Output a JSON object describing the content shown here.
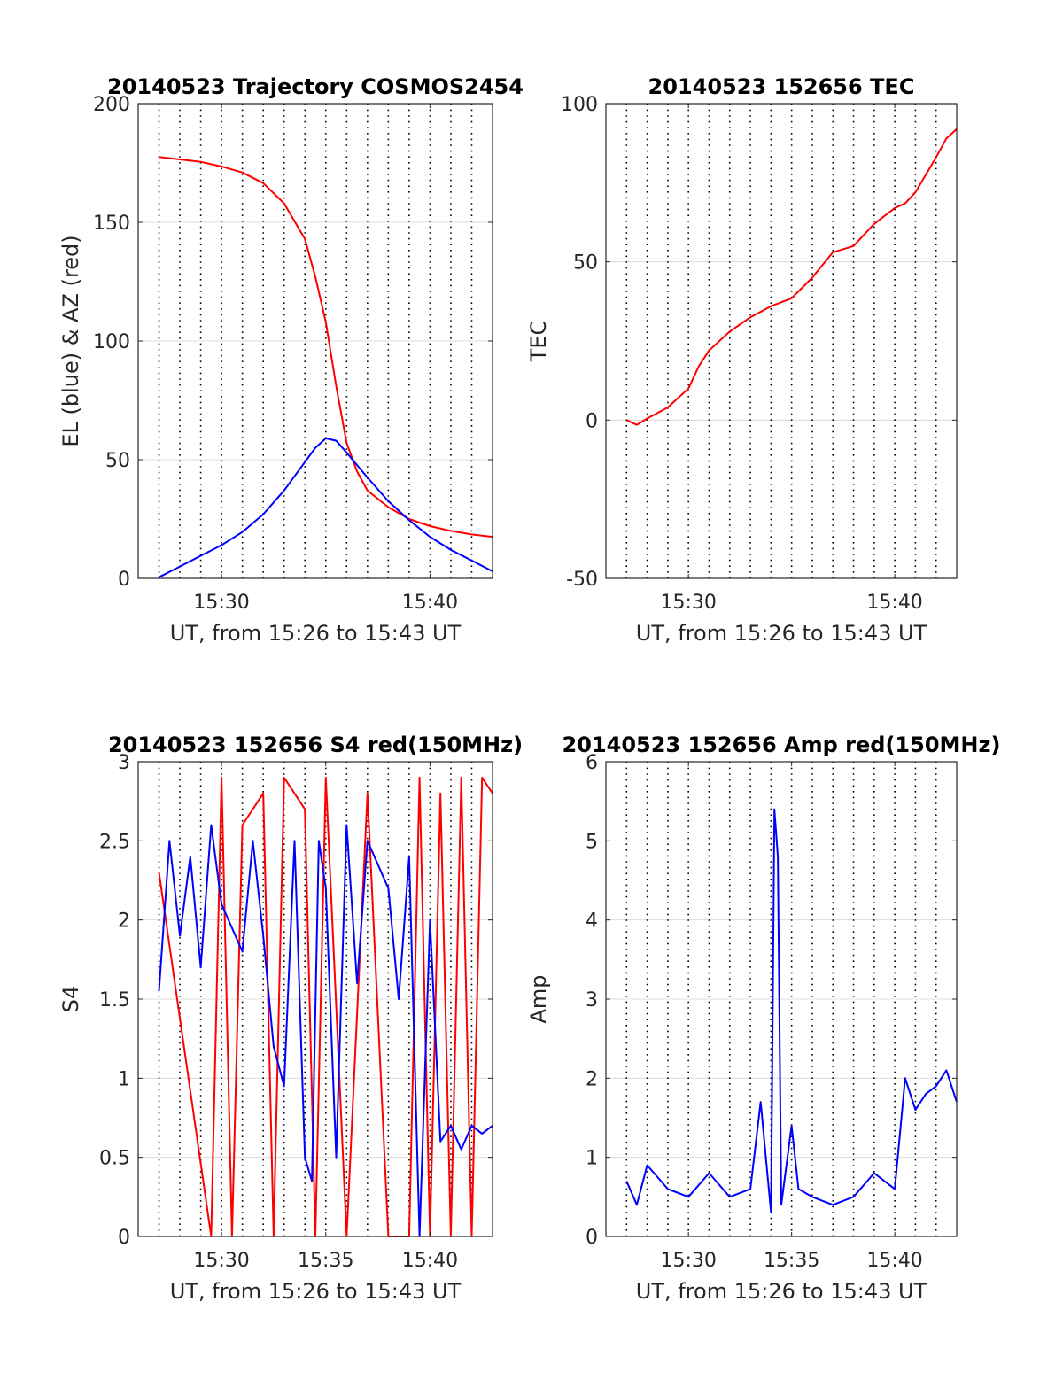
{
  "figure": {
    "title": "",
    "colors": {
      "red": "#ff0000",
      "blue": "#0000ff",
      "axes": "#262626",
      "grid": "#dcdcdc"
    }
  },
  "chart_data": [
    {
      "id": "trajectory",
      "type": "line",
      "title": "20140523 Trajectory COSMOS2454",
      "xlabel": "UT, from 15:26 to 15:43 UT",
      "ylabel": "EL (blue) & AZ (red)",
      "xlim": [
        "15:26",
        "15:43"
      ],
      "ylim": [
        0,
        200
      ],
      "xticks": [
        "15:30",
        "15:40"
      ],
      "yticks": [
        0,
        50,
        100,
        150,
        200
      ],
      "vlines": [
        "15:27",
        "15:28",
        "15:29",
        "15:30",
        "15:31",
        "15:32",
        "15:33",
        "15:34",
        "15:35",
        "15:36",
        "15:37",
        "15:38",
        "15:39",
        "15:40",
        "15:41",
        "15:42"
      ],
      "grid": true,
      "series": [
        {
          "color": "red",
          "x": [
            "15:27",
            "15:28",
            "15:29",
            "15:30",
            "15:31",
            "15:32",
            "15:33",
            "15:34",
            "15:34:30",
            "15:35",
            "15:35:30",
            "15:36",
            "15:36:30",
            "15:37",
            "15:38",
            "15:39",
            "15:40",
            "15:41",
            "15:42",
            "15:43"
          ],
          "y": [
            177.5,
            176.5,
            175.5,
            173.5,
            171,
            166.5,
            158,
            143,
            127,
            108,
            81,
            57,
            45,
            37,
            30,
            25,
            22,
            20,
            18.5,
            17.5
          ]
        },
        {
          "color": "blue",
          "x": [
            "15:27",
            "15:28",
            "15:29",
            "15:30",
            "15:31",
            "15:32",
            "15:33",
            "15:34",
            "15:34:30",
            "15:35",
            "15:35:30",
            "15:36",
            "15:37",
            "15:38",
            "15:39",
            "15:40",
            "15:41",
            "15:42",
            "15:43"
          ],
          "y": [
            0.5,
            5,
            9.5,
            14,
            19.5,
            27,
            37,
            49,
            55,
            59,
            58,
            53,
            42.5,
            32.5,
            24.5,
            17.5,
            12,
            7.5,
            3
          ]
        }
      ]
    },
    {
      "id": "tec",
      "type": "line",
      "title": "20140523 152656 TEC",
      "xlabel": "UT, from 15:26 to 15:43 UT",
      "ylabel": "TEC",
      "xlim": [
        "15:26",
        "15:43"
      ],
      "ylim": [
        -50,
        100
      ],
      "xticks": [
        "15:30",
        "15:40"
      ],
      "yticks": [
        -50,
        0,
        50,
        100
      ],
      "vlines": [
        "15:27",
        "15:28",
        "15:29",
        "15:30",
        "15:31",
        "15:32",
        "15:33",
        "15:34",
        "15:35",
        "15:36",
        "15:37",
        "15:38",
        "15:39",
        "15:40",
        "15:41",
        "15:42"
      ],
      "grid": true,
      "series": [
        {
          "color": "red",
          "x": [
            "15:27",
            "15:27:30",
            "15:28",
            "15:29",
            "15:30",
            "15:30:30",
            "15:31",
            "15:32",
            "15:33",
            "15:34",
            "15:35",
            "15:36",
            "15:37",
            "15:38",
            "15:39",
            "15:40",
            "15:40:30",
            "15:41",
            "15:42",
            "15:42:30",
            "15:43"
          ],
          "y": [
            0,
            -1.5,
            0.5,
            4,
            10,
            17,
            22,
            28,
            32.5,
            36,
            38.5,
            45,
            53,
            55,
            62,
            67,
            68.5,
            72,
            83,
            89,
            92
          ]
        }
      ]
    },
    {
      "id": "s4",
      "type": "line",
      "title": "20140523 152656 S4 red(150MHz)",
      "xlabel": "UT, from 15:26 to 15:43 UT",
      "ylabel": "S4",
      "xlim": [
        "15:26",
        "15:43"
      ],
      "ylim": [
        0,
        3
      ],
      "xticks": [
        "15:30",
        "15:35",
        "15:40"
      ],
      "yticks": [
        0,
        0.5,
        1,
        1.5,
        2,
        2.5,
        3
      ],
      "vlines": [
        "15:27",
        "15:28",
        "15:29",
        "15:30",
        "15:31",
        "15:32",
        "15:33",
        "15:34",
        "15:35",
        "15:36",
        "15:37",
        "15:38",
        "15:39",
        "15:40",
        "15:41",
        "15:42"
      ],
      "grid": true,
      "series": [
        {
          "color": "red",
          "x": [
            "15:27",
            "15:29:30",
            "15:30",
            "15:30:30",
            "15:31",
            "15:32",
            "15:32:30",
            "15:33",
            "15:34",
            "15:34:30",
            "15:35",
            "15:36",
            "15:37",
            "15:38",
            "15:39",
            "15:39:30",
            "15:40",
            "15:40:30",
            "15:41",
            "15:41:30",
            "15:42",
            "15:42:30",
            "15:43"
          ],
          "y": [
            2.3,
            0,
            2.9,
            0,
            2.6,
            2.8,
            0,
            2.9,
            2.7,
            0,
            2.9,
            0,
            2.8,
            0,
            0,
            2.9,
            0,
            2.8,
            0,
            2.9,
            0,
            2.9,
            2.8
          ]
        },
        {
          "color": "blue",
          "x": [
            "15:27",
            "15:27:30",
            "15:28",
            "15:28:30",
            "15:29",
            "15:29:30",
            "15:30",
            "15:31",
            "15:31:30",
            "15:32",
            "15:32:30",
            "15:33",
            "15:33:30",
            "15:34",
            "15:34:20",
            "15:34:40",
            "15:35",
            "15:35:30",
            "15:36",
            "15:36:30",
            "15:37",
            "15:38",
            "15:38:30",
            "15:39",
            "15:39:30",
            "15:40",
            "15:40:30",
            "15:41",
            "15:41:30",
            "15:42",
            "15:42:30",
            "15:43"
          ],
          "y": [
            1.55,
            2.5,
            1.9,
            2.4,
            1.7,
            2.6,
            2.1,
            1.8,
            2.5,
            1.9,
            1.2,
            0.95,
            2.5,
            0.5,
            0.35,
            2.5,
            2.2,
            0.5,
            2.6,
            1.6,
            2.5,
            2.2,
            1.5,
            2.4,
            0,
            2.0,
            0.6,
            0.7,
            0.55,
            0.7,
            0.65,
            0.7
          ]
        }
      ]
    },
    {
      "id": "amp",
      "type": "line",
      "title": "20140523 152656 Amp red(150MHz)",
      "xlabel": "UT, from 15:26 to 15:43 UT",
      "ylabel": "Amp",
      "xlim": [
        "15:26",
        "15:43"
      ],
      "ylim": [
        0,
        6
      ],
      "xticks": [
        "15:30",
        "15:35",
        "15:40"
      ],
      "yticks": [
        0,
        1,
        2,
        3,
        4,
        5,
        6
      ],
      "vlines": [
        "15:27",
        "15:28",
        "15:29",
        "15:30",
        "15:31",
        "15:32",
        "15:33",
        "15:34",
        "15:35",
        "15:36",
        "15:37",
        "15:38",
        "15:39",
        "15:40",
        "15:41",
        "15:42"
      ],
      "grid": true,
      "series": [
        {
          "color": "blue",
          "x": [
            "15:27",
            "15:27:30",
            "15:28",
            "15:29",
            "15:30",
            "15:31",
            "15:32",
            "15:33",
            "15:33:30",
            "15:34",
            "15:34:10",
            "15:34:20",
            "15:34:30",
            "15:35",
            "15:35:20",
            "15:36",
            "15:37",
            "15:38",
            "15:39",
            "15:40",
            "15:40:30",
            "15:41",
            "15:41:30",
            "15:42",
            "15:42:30",
            "15:43"
          ],
          "y": [
            0.7,
            0.4,
            0.9,
            0.6,
            0.5,
            0.8,
            0.5,
            0.6,
            1.7,
            0.3,
            5.4,
            4.8,
            0.4,
            1.4,
            0.6,
            0.5,
            0.4,
            0.5,
            0.8,
            0.6,
            2.0,
            1.6,
            1.8,
            1.9,
            2.1,
            1.7
          ]
        }
      ]
    }
  ]
}
